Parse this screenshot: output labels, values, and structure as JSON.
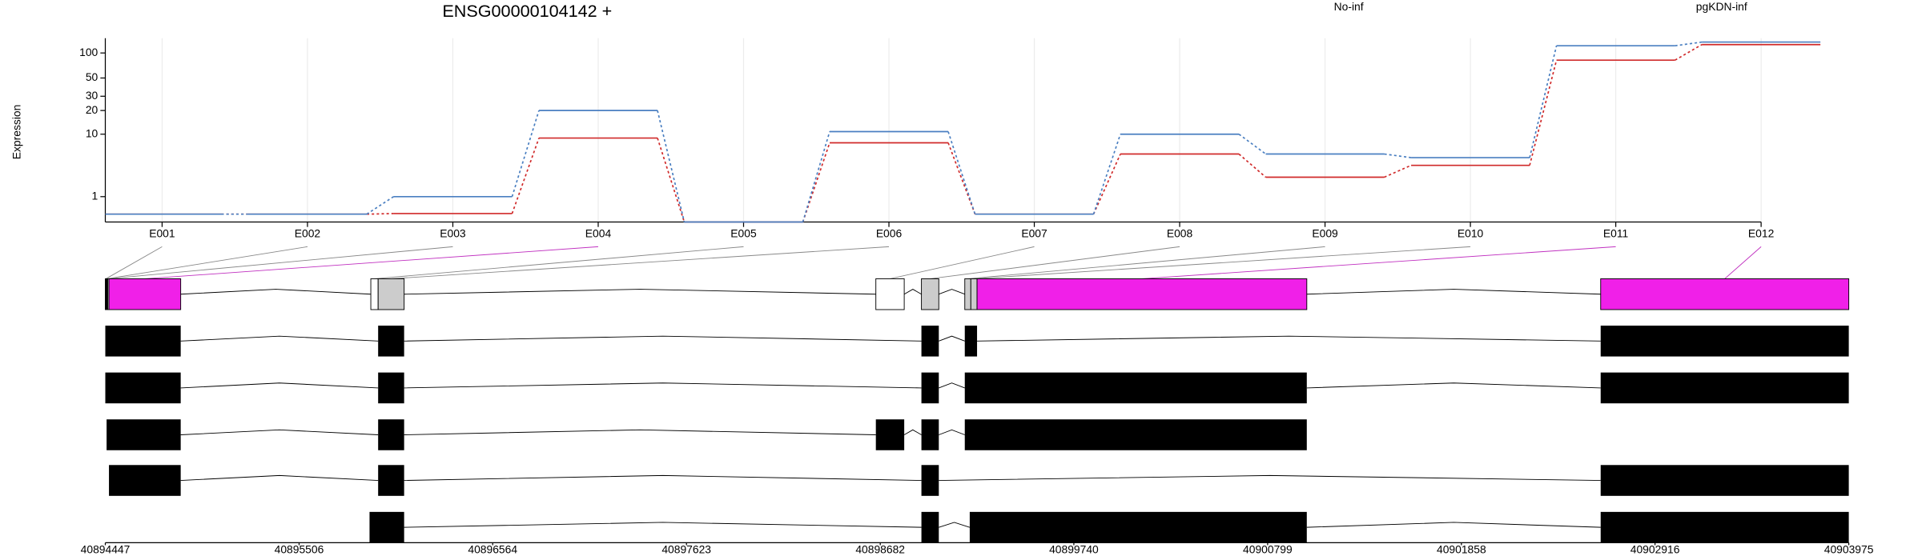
{
  "chart_data": [
    {
      "type": "line",
      "title": "ENSG00000104142 +",
      "y_label": "Expression",
      "yscale": "log1p",
      "grid": true,
      "categories": [
        "E001",
        "E002",
        "E003",
        "E004",
        "E005",
        "E006",
        "E007",
        "E008",
        "E009",
        "E010",
        "E011",
        "E012"
      ],
      "series": [
        {
          "name": "No-inf",
          "color": "#d02a2a",
          "values": [
            0.24,
            0.24,
            0.26,
            8.9,
            0,
            7.7,
            0.24,
            5.4,
            2.4,
            3.7,
            82,
            126
          ]
        },
        {
          "name": "pgKDN-inf",
          "color": "#4a7fc1",
          "values": [
            0.24,
            0.24,
            1,
            20,
            0,
            10.8,
            0.24,
            10,
            5.4,
            4.8,
            122,
            135
          ]
        }
      ],
      "ylim": [
        0,
        150
      ],
      "yticks": [
        1,
        10,
        20,
        30,
        50,
        100
      ]
    },
    {
      "type": "gene_model",
      "xlim": [
        40894447,
        40903975
      ],
      "xticks": [
        40894447,
        40895506,
        40896564,
        40897623,
        40898682,
        40899740,
        40900799,
        40901858,
        40902916,
        40903975
      ],
      "exon_bins": [
        {
          "start": 40894447,
          "end": 40894454,
          "fill": "#000000"
        },
        {
          "start": 40894454,
          "end": 40894460,
          "fill": "#000000"
        },
        {
          "start": 40894460,
          "end": 40894467,
          "fill": "#cccccc"
        },
        {
          "start": 40894467,
          "end": 40894859,
          "fill": "#f020e8"
        },
        {
          "start": 40895898,
          "end": 40895938,
          "fill": "#ffffff"
        },
        {
          "start": 40895938,
          "end": 40896080,
          "fill": "#cccccc"
        },
        {
          "start": 40898658,
          "end": 40898813,
          "fill": "#ffffff"
        },
        {
          "start": 40898907,
          "end": 40899002,
          "fill": "#cccccc"
        },
        {
          "start": 40899144,
          "end": 40899177,
          "fill": "#cccccc"
        },
        {
          "start": 40899177,
          "end": 40899211,
          "fill": "#cccccc"
        },
        {
          "start": 40899211,
          "end": 40901013,
          "fill": "#f020e8"
        },
        {
          "start": 40902619,
          "end": 40903975,
          "fill": "#f020e8"
        }
      ],
      "transcripts": [
        [
          [
            40894447,
            40894859
          ],
          [
            40895938,
            40896080
          ],
          [
            40898907,
            40899002
          ],
          [
            40899144,
            40899211
          ],
          [
            40902619,
            40903975
          ]
        ],
        [
          [
            40894447,
            40894859
          ],
          [
            40895938,
            40896080
          ],
          [
            40898907,
            40899002
          ],
          [
            40899144,
            40901013
          ],
          [
            40902619,
            40903975
          ]
        ],
        [
          [
            40894454,
            40894859
          ],
          [
            40895938,
            40896080
          ],
          [
            40898658,
            40898813
          ],
          [
            40898907,
            40899002
          ],
          [
            40899144,
            40901013
          ]
        ],
        [
          [
            40894467,
            40894859
          ],
          [
            40895938,
            40896080
          ],
          [
            40898907,
            40899002
          ],
          [
            40902619,
            40903975
          ]
        ],
        [
          [
            40895891,
            40896080
          ],
          [
            40898907,
            40899002
          ],
          [
            40899171,
            40901013
          ],
          [
            40902619,
            40903975
          ]
        ]
      ]
    }
  ]
}
